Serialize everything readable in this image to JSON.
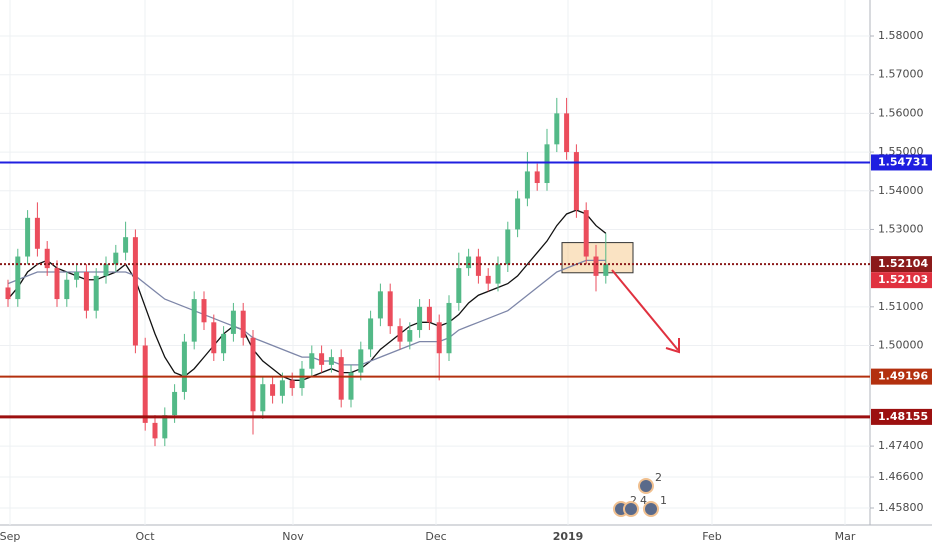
{
  "chart_data": {
    "type": "candlestick",
    "x_labels": [
      "Sep",
      "Oct",
      "Nov",
      "Dec",
      "2019",
      "Feb",
      "Mar"
    ],
    "ylim": [
      1.45,
      1.59
    ],
    "yticks": [
      {
        "value": 1.58,
        "label": "1.58000"
      },
      {
        "value": 1.57,
        "label": "1.57000"
      },
      {
        "value": 1.56,
        "label": "1.56000"
      },
      {
        "value": 1.55,
        "label": "1.55000"
      },
      {
        "value": 1.54,
        "label": "1.54000"
      },
      {
        "value": 1.53,
        "label": "1.53000"
      },
      {
        "value": 1.51,
        "label": "1.51000"
      },
      {
        "value": 1.5,
        "label": "1.50000"
      },
      {
        "value": 1.474,
        "label": "1.47400"
      },
      {
        "value": 1.466,
        "label": "1.46600"
      },
      {
        "value": 1.458,
        "label": "1.45800"
      }
    ],
    "grid": true,
    "up_color": "#53b987",
    "down_color": "#eb4d5c",
    "open": [
      1.515,
      1.512,
      1.523,
      1.533,
      1.525,
      1.52,
      1.512,
      1.517,
      1.519,
      1.509,
      1.518,
      1.521,
      1.524,
      1.528,
      1.5,
      1.48,
      1.476,
      1.482,
      1.488,
      1.501,
      1.512,
      1.506,
      1.498,
      1.503,
      1.509,
      1.502,
      1.483,
      1.49,
      1.487,
      1.491,
      1.489,
      1.494,
      1.498,
      1.495,
      1.497,
      1.486,
      1.493,
      1.499,
      1.507,
      1.514,
      1.505,
      1.501,
      1.504,
      1.51,
      1.506,
      1.498,
      1.511,
      1.52,
      1.523,
      1.518,
      1.516,
      1.521,
      1.53,
      1.538,
      1.545,
      1.542,
      1.552,
      1.56,
      1.55,
      1.535,
      1.523,
      1.518
    ],
    "high": [
      1.517,
      1.525,
      1.535,
      1.537,
      1.527,
      1.522,
      1.519,
      1.521,
      1.521,
      1.52,
      1.523,
      1.526,
      1.532,
      1.53,
      1.502,
      1.482,
      1.484,
      1.49,
      1.503,
      1.514,
      1.514,
      1.508,
      1.505,
      1.511,
      1.511,
      1.504,
      1.492,
      1.492,
      1.493,
      1.493,
      1.496,
      1.5,
      1.5,
      1.499,
      1.499,
      1.495,
      1.501,
      1.509,
      1.516,
      1.516,
      1.507,
      1.506,
      1.512,
      1.512,
      1.508,
      1.513,
      1.524,
      1.525,
      1.525,
      1.52,
      1.523,
      1.532,
      1.54,
      1.55,
      1.547,
      1.556,
      1.564,
      1.564,
      1.552,
      1.537,
      1.526,
      1.529
    ],
    "low": [
      1.51,
      1.51,
      1.521,
      1.523,
      1.518,
      1.51,
      1.51,
      1.515,
      1.507,
      1.507,
      1.516,
      1.519,
      1.522,
      1.498,
      1.478,
      1.474,
      1.474,
      1.48,
      1.486,
      1.499,
      1.504,
      1.496,
      1.496,
      1.501,
      1.5,
      1.477,
      1.481,
      1.485,
      1.485,
      1.487,
      1.487,
      1.492,
      1.493,
      1.493,
      1.484,
      1.484,
      1.491,
      1.497,
      1.505,
      1.503,
      1.499,
      1.499,
      1.502,
      1.504,
      1.491,
      1.496,
      1.509,
      1.518,
      1.516,
      1.514,
      1.514,
      1.519,
      1.528,
      1.536,
      1.54,
      1.54,
      1.55,
      1.548,
      1.533,
      1.521,
      1.514,
      1.516
    ],
    "close": [
      1.512,
      1.523,
      1.533,
      1.525,
      1.52,
      1.512,
      1.517,
      1.519,
      1.509,
      1.518,
      1.521,
      1.524,
      1.528,
      1.5,
      1.48,
      1.476,
      1.482,
      1.488,
      1.501,
      1.512,
      1.506,
      1.498,
      1.503,
      1.509,
      1.502,
      1.483,
      1.49,
      1.487,
      1.491,
      1.489,
      1.494,
      1.498,
      1.495,
      1.497,
      1.486,
      1.493,
      1.499,
      1.507,
      1.514,
      1.505,
      1.501,
      1.504,
      1.51,
      1.506,
      1.498,
      1.511,
      1.52,
      1.523,
      1.518,
      1.516,
      1.521,
      1.53,
      1.538,
      1.545,
      1.542,
      1.552,
      1.56,
      1.55,
      1.535,
      1.523,
      1.518,
      1.521
    ],
    "lines": [
      {
        "color": "#111111",
        "values": [
          1.512,
          1.515,
          1.519,
          1.521,
          1.522,
          1.52,
          1.519,
          1.518,
          1.517,
          1.517,
          1.518,
          1.519,
          1.521,
          1.517,
          1.51,
          1.503,
          1.497,
          1.493,
          1.492,
          1.494,
          1.497,
          1.5,
          1.503,
          1.505,
          1.504,
          1.499,
          1.496,
          1.494,
          1.492,
          1.491,
          1.491,
          1.492,
          1.493,
          1.494,
          1.493,
          1.493,
          1.494,
          1.496,
          1.499,
          1.501,
          1.503,
          1.505,
          1.506,
          1.506,
          1.505,
          1.506,
          1.508,
          1.511,
          1.513,
          1.514,
          1.515,
          1.516,
          1.518,
          1.521,
          1.524,
          1.527,
          1.531,
          1.534,
          1.535,
          1.534,
          1.531,
          1.529
        ]
      },
      {
        "color": "#7d86a8",
        "values": [
          1.516,
          1.517,
          1.518,
          1.519,
          1.519,
          1.519,
          1.519,
          1.519,
          1.519,
          1.519,
          1.519,
          1.519,
          1.519,
          1.518,
          1.516,
          1.514,
          1.512,
          1.511,
          1.51,
          1.509,
          1.508,
          1.507,
          1.506,
          1.505,
          1.504,
          1.502,
          1.501,
          1.5,
          1.499,
          1.498,
          1.497,
          1.497,
          1.496,
          1.496,
          1.495,
          1.495,
          1.495,
          1.496,
          1.497,
          1.498,
          1.499,
          1.5,
          1.501,
          1.501,
          1.501,
          1.502,
          1.504,
          1.505,
          1.506,
          1.507,
          1.508,
          1.509,
          1.511,
          1.513,
          1.515,
          1.517,
          1.519,
          1.52,
          1.521,
          1.522,
          1.522,
          1.522
        ]
      }
    ],
    "levels": [
      {
        "value": 1.54731,
        "color": "#1f1fe0",
        "width": 2
      },
      {
        "value": 1.52104,
        "color": "#8b1a1a",
        "width": 2,
        "dotted": true
      },
      {
        "value": 1.49196,
        "color": "#b3300f",
        "width": 2
      },
      {
        "value": 1.48155,
        "color": "#9c1010",
        "width": 3
      }
    ],
    "last_price": {
      "value": 1.52103,
      "color": "#e0313f"
    },
    "zone": {
      "top": 1.5266,
      "bottom": 1.5188,
      "color": "#f5c27a"
    },
    "events": [
      "2",
      "2",
      "4",
      "1"
    ]
  }
}
